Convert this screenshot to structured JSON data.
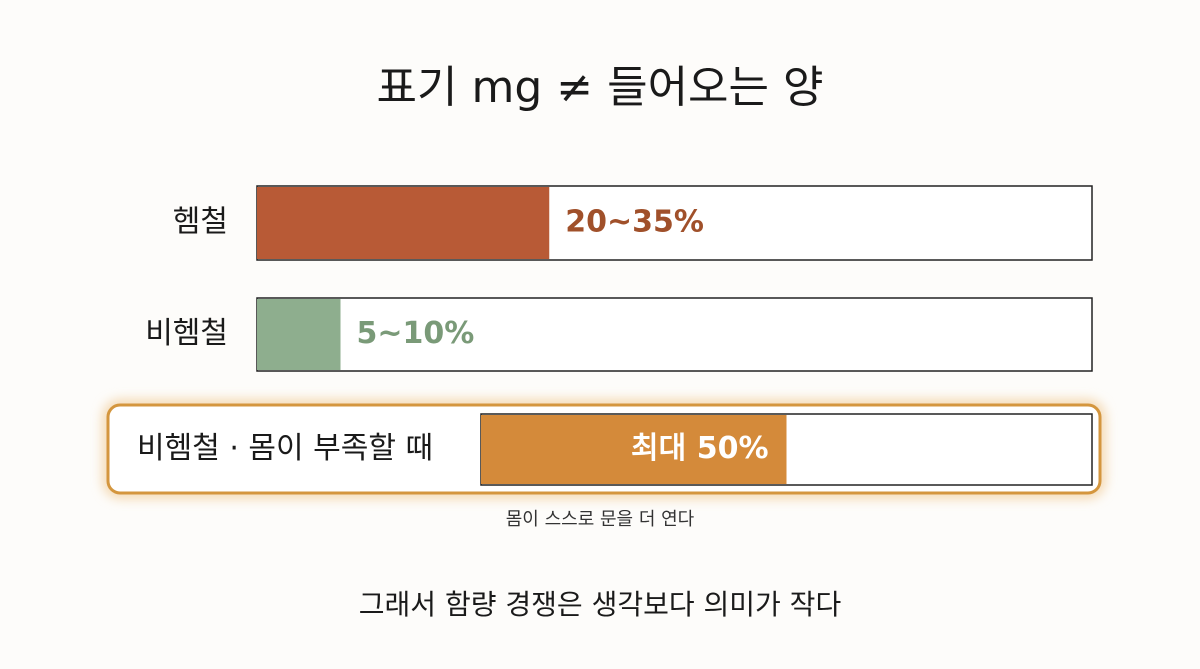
{
  "chart_data": {
    "type": "bar",
    "orientation": "horizontal",
    "title": "표기 mg ≠ 들어오는 양",
    "categories": [
      "헴철",
      "비헴철",
      "비헴철 · 몸이 부족할 때"
    ],
    "values": [
      35,
      10,
      50
    ],
    "value_labels": [
      "20~35%",
      "5~10%",
      "최대 50%"
    ],
    "colors": [
      "#b85a36",
      "#8eae8e",
      "#d48a3a"
    ],
    "xlim": [
      0,
      100
    ],
    "annotation": "몸이 스스로 문을 더 연다",
    "footer": "그래서 함량 경쟁은 생각보다 의미가 작다"
  }
}
